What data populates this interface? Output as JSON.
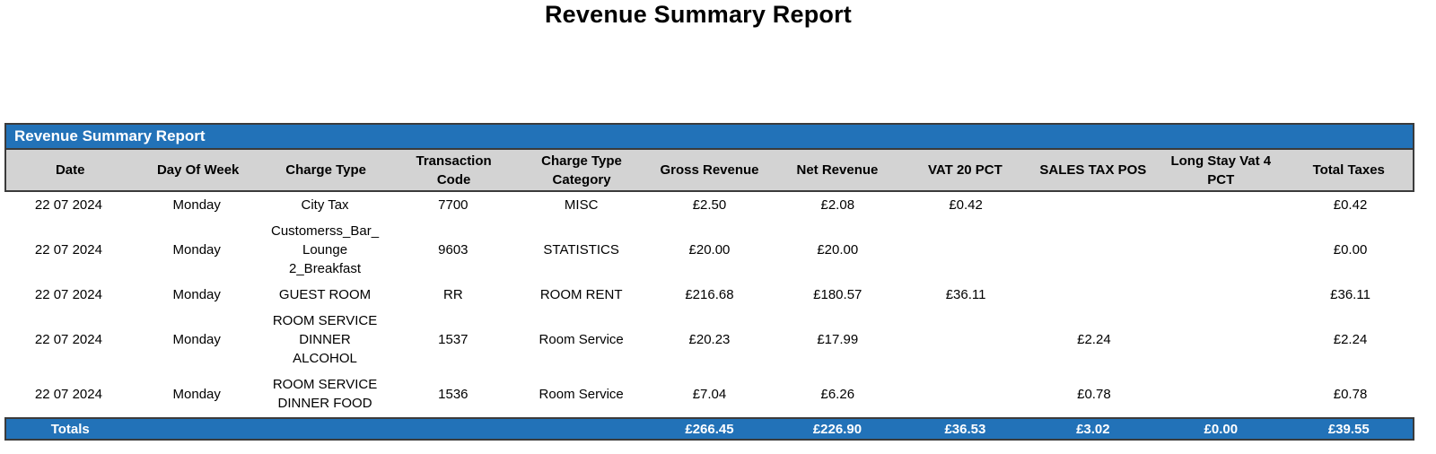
{
  "page": {
    "title": "Revenue Summary Report"
  },
  "table": {
    "title": "Revenue Summary Report",
    "columns": [
      "Date",
      "Day Of Week",
      "Charge Type",
      "Transaction\nCode",
      "Charge Type\nCategory",
      "Gross Revenue",
      "Net Revenue",
      "VAT 20 PCT",
      "SALES TAX POS",
      "Long Stay Vat 4\nPCT",
      "Total Taxes"
    ],
    "rows": [
      [
        "22 07 2024",
        "Monday",
        "City Tax",
        "7700",
        "MISC",
        "£2.50",
        "£2.08",
        "£0.42",
        "",
        "",
        "£0.42"
      ],
      [
        "22 07 2024",
        "Monday",
        "Customerss_Bar_\nLounge\n2_Breakfast",
        "9603",
        "STATISTICS",
        "£20.00",
        "£20.00",
        "",
        "",
        "",
        "£0.00"
      ],
      [
        "22 07 2024",
        "Monday",
        "GUEST ROOM",
        "RR",
        "ROOM RENT",
        "£216.68",
        "£180.57",
        "£36.11",
        "",
        "",
        "£36.11"
      ],
      [
        "22 07 2024",
        "Monday",
        "ROOM SERVICE\nDINNER\nALCOHOL",
        "1537",
        "Room Service",
        "£20.23",
        "£17.99",
        "",
        "£2.24",
        "",
        "£2.24"
      ],
      [
        "22 07 2024",
        "Monday",
        "ROOM SERVICE\nDINNER FOOD",
        "1536",
        "Room Service",
        "£7.04",
        "£6.26",
        "",
        "£0.78",
        "",
        "£0.78"
      ]
    ],
    "totals": [
      "Totals",
      "",
      "",
      "",
      "",
      "£266.45",
      "£226.90",
      "£36.53",
      "£3.02",
      "£0.00",
      "£39.55"
    ]
  },
  "colors": {
    "accent_blue": "#2272b8",
    "header_gray": "#d3d3d3",
    "border_dark": "#3b3b3b"
  }
}
